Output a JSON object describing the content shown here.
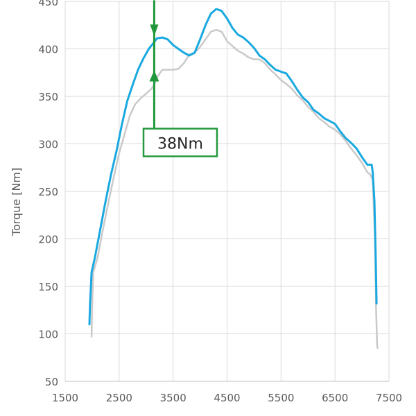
{
  "chart_data": {
    "type": "line",
    "xlabel": "",
    "ylabel": "Torque [Nm]",
    "xlim": [
      1500,
      7500
    ],
    "ylim": [
      50,
      450
    ],
    "xticks": [
      1500,
      2500,
      3500,
      4500,
      5500,
      6500,
      7500
    ],
    "yticks": [
      50,
      100,
      150,
      200,
      250,
      300,
      350,
      400,
      450
    ],
    "grid": true,
    "colors": {
      "series_a": "#19a9e0",
      "series_b": "#c9c9c9",
      "annotation": "#22983c",
      "grid": "#d9d9d9"
    },
    "series": [
      {
        "points": [
          [
            1950,
            110
          ],
          [
            1960,
            130
          ],
          [
            1990,
            165
          ],
          [
            2050,
            180
          ],
          [
            2150,
            210
          ],
          [
            2250,
            240
          ],
          [
            2350,
            268
          ],
          [
            2450,
            292
          ],
          [
            2550,
            320
          ],
          [
            2650,
            345
          ],
          [
            2750,
            362
          ],
          [
            2850,
            378
          ],
          [
            2950,
            390
          ],
          [
            3050,
            400
          ],
          [
            3120,
            405
          ],
          [
            3200,
            411
          ],
          [
            3300,
            412
          ],
          [
            3400,
            410
          ],
          [
            3500,
            404
          ],
          [
            3600,
            400
          ],
          [
            3700,
            396
          ],
          [
            3800,
            393
          ],
          [
            3900,
            396
          ],
          [
            4000,
            410
          ],
          [
            4100,
            425
          ],
          [
            4200,
            437
          ],
          [
            4300,
            442
          ],
          [
            4400,
            440
          ],
          [
            4500,
            432
          ],
          [
            4600,
            422
          ],
          [
            4700,
            415
          ],
          [
            4800,
            412
          ],
          [
            4900,
            407
          ],
          [
            5000,
            401
          ],
          [
            5100,
            393
          ],
          [
            5200,
            389
          ],
          [
            5300,
            383
          ],
          [
            5400,
            378
          ],
          [
            5500,
            376
          ],
          [
            5600,
            374
          ],
          [
            5700,
            366
          ],
          [
            5800,
            357
          ],
          [
            5900,
            349
          ],
          [
            6000,
            344
          ],
          [
            6100,
            336
          ],
          [
            6200,
            332
          ],
          [
            6300,
            327
          ],
          [
            6400,
            324
          ],
          [
            6500,
            321
          ],
          [
            6600,
            313
          ],
          [
            6700,
            306
          ],
          [
            6800,
            301
          ],
          [
            6900,
            295
          ],
          [
            7000,
            286
          ],
          [
            7100,
            278
          ],
          [
            7150,
            278
          ],
          [
            7180,
            278
          ],
          [
            7200,
            270
          ],
          [
            7230,
            240
          ],
          [
            7255,
            180
          ],
          [
            7270,
            132
          ]
        ]
      },
      {
        "points": [
          [
            1990,
            97
          ],
          [
            2000,
            130
          ],
          [
            2020,
            165
          ],
          [
            2100,
            180
          ],
          [
            2200,
            210
          ],
          [
            2300,
            238
          ],
          [
            2400,
            265
          ],
          [
            2500,
            290
          ],
          [
            2600,
            310
          ],
          [
            2700,
            330
          ],
          [
            2800,
            342
          ],
          [
            2900,
            348
          ],
          [
            3000,
            353
          ],
          [
            3100,
            358
          ],
          [
            3150,
            362
          ],
          [
            3200,
            370
          ],
          [
            3300,
            378
          ],
          [
            3400,
            378
          ],
          [
            3500,
            378
          ],
          [
            3600,
            379
          ],
          [
            3700,
            385
          ],
          [
            3800,
            394
          ],
          [
            3900,
            396
          ],
          [
            4000,
            402
          ],
          [
            4100,
            410
          ],
          [
            4200,
            418
          ],
          [
            4300,
            420
          ],
          [
            4400,
            418
          ],
          [
            4500,
            408
          ],
          [
            4600,
            403
          ],
          [
            4700,
            398
          ],
          [
            4800,
            395
          ],
          [
            4900,
            391
          ],
          [
            5000,
            389
          ],
          [
            5100,
            389
          ],
          [
            5200,
            385
          ],
          [
            5300,
            378
          ],
          [
            5400,
            373
          ],
          [
            5500,
            367
          ],
          [
            5600,
            363
          ],
          [
            5700,
            358
          ],
          [
            5800,
            351
          ],
          [
            5900,
            346
          ],
          [
            6000,
            339
          ],
          [
            6100,
            334
          ],
          [
            6200,
            327
          ],
          [
            6300,
            323
          ],
          [
            6400,
            318
          ],
          [
            6500,
            315
          ],
          [
            6600,
            310
          ],
          [
            6700,
            303
          ],
          [
            6800,
            295
          ],
          [
            6900,
            288
          ],
          [
            7000,
            280
          ],
          [
            7100,
            270
          ],
          [
            7150,
            268
          ],
          [
            7200,
            262
          ],
          [
            7240,
            200
          ],
          [
            7260,
            130
          ],
          [
            7280,
            88
          ],
          [
            7290,
            85
          ]
        ]
      }
    ],
    "annotations": [
      {
        "text": "38Nm",
        "x": 3150,
        "y_from": 411,
        "y_to": 373,
        "label_y": 300,
        "label_x": 3600
      }
    ]
  }
}
